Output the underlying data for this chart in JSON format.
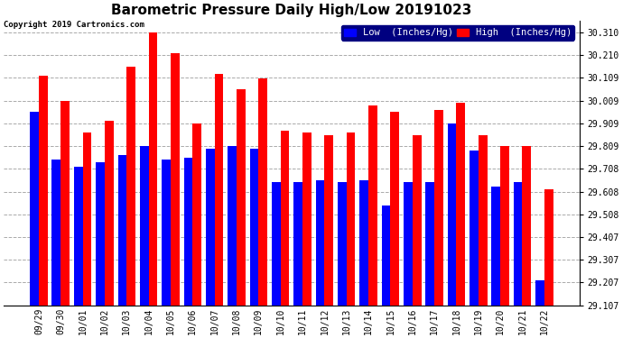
{
  "title": "Barometric Pressure Daily High/Low 20191023",
  "copyright": "Copyright 2019 Cartronics.com",
  "categories": [
    "09/29",
    "09/30",
    "10/01",
    "10/02",
    "10/03",
    "10/04",
    "10/05",
    "10/06",
    "10/07",
    "10/08",
    "10/09",
    "10/10",
    "10/11",
    "10/12",
    "10/13",
    "10/14",
    "10/15",
    "10/16",
    "10/17",
    "10/18",
    "10/19",
    "10/20",
    "10/21",
    "10/22"
  ],
  "low_values": [
    29.96,
    29.748,
    29.718,
    29.738,
    29.768,
    29.808,
    29.748,
    29.758,
    29.798,
    29.808,
    29.798,
    29.648,
    29.648,
    29.658,
    29.648,
    29.658,
    29.548,
    29.648,
    29.648,
    29.908,
    29.788,
    29.628,
    29.648,
    29.218
  ],
  "high_values": [
    30.118,
    30.008,
    29.868,
    29.918,
    30.158,
    30.308,
    30.218,
    29.908,
    30.128,
    30.058,
    30.108,
    29.878,
    29.868,
    29.858,
    29.868,
    29.988,
    29.958,
    29.858,
    29.968,
    29.998,
    29.858,
    29.808,
    29.808,
    29.618
  ],
  "ylim_min": 29.107,
  "ylim_max": 30.36,
  "yticks": [
    29.107,
    29.207,
    29.307,
    29.407,
    29.508,
    29.608,
    29.708,
    29.809,
    29.909,
    30.009,
    30.109,
    30.21,
    30.31
  ],
  "low_color": "#0000ff",
  "high_color": "#ff0000",
  "bg_color": "#ffffff",
  "grid_color": "#aaaaaa",
  "bar_width": 0.4,
  "title_fontsize": 11,
  "tick_fontsize": 7,
  "legend_fontsize": 7.5,
  "copyright_fontsize": 6.5
}
